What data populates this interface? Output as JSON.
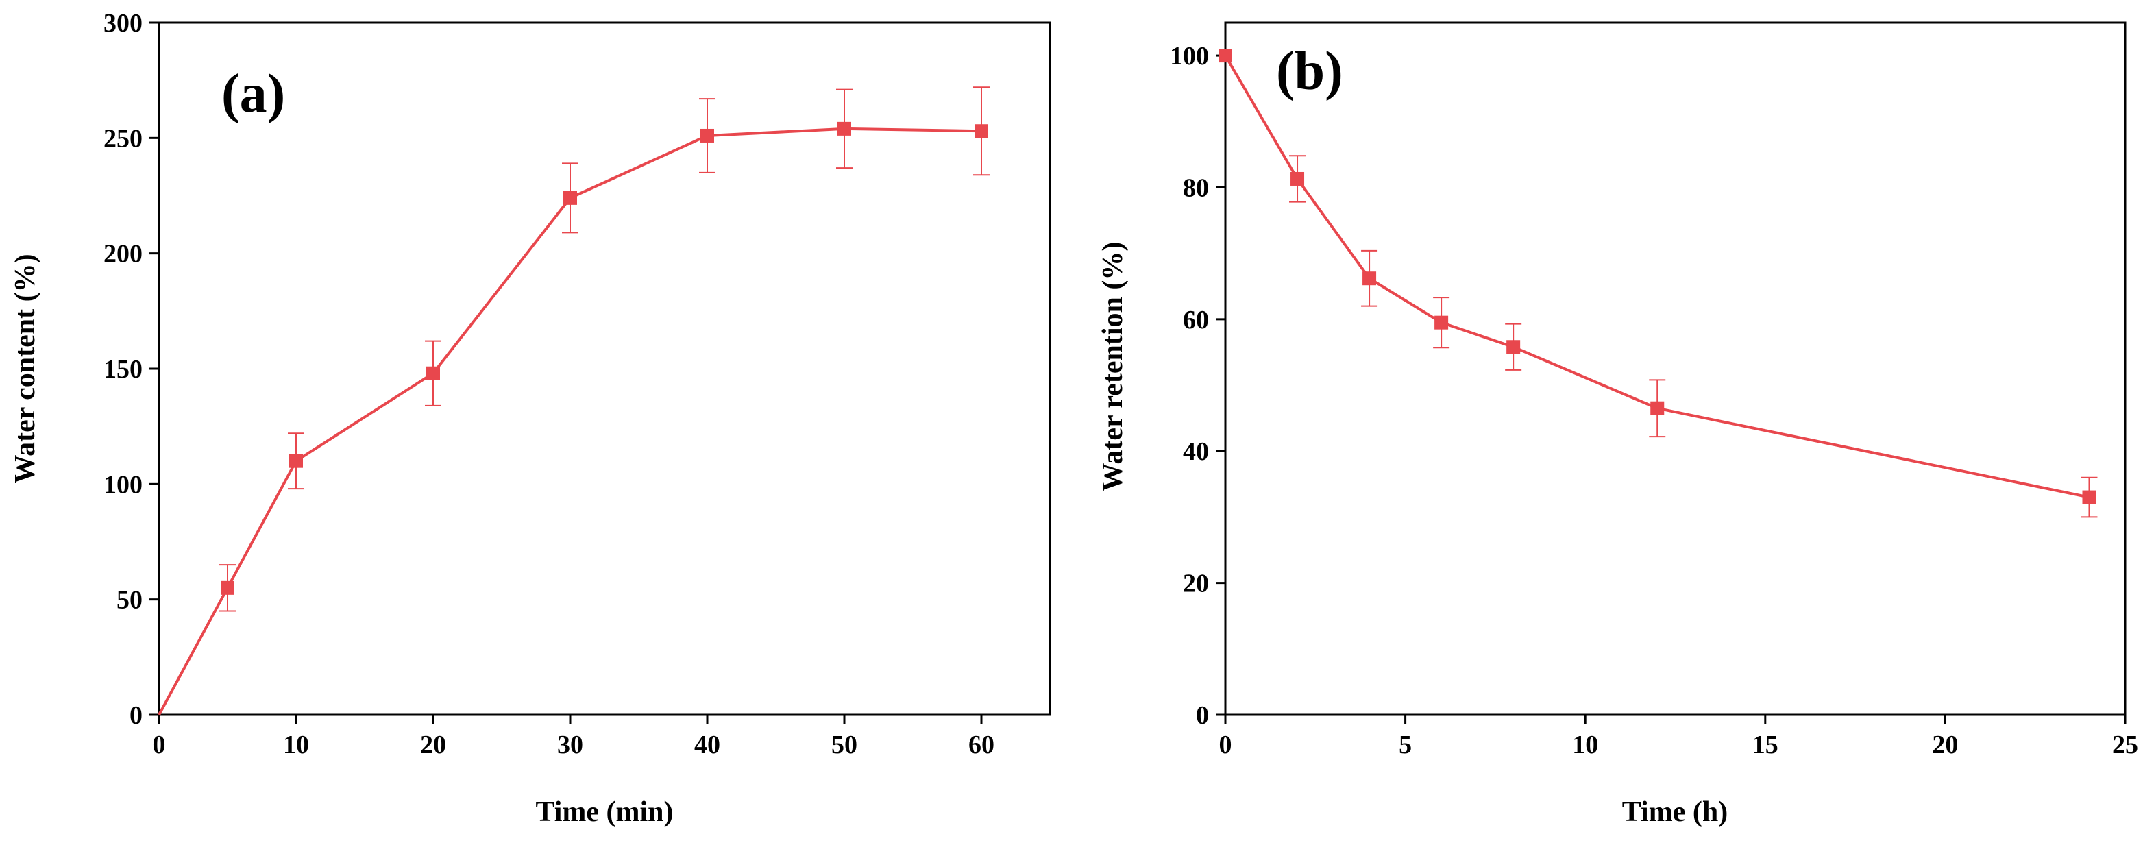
{
  "chart_data": [
    {
      "type": "line",
      "panel_label": "(a)",
      "xlabel": "Time (min)",
      "ylabel": "Water content (%)",
      "xlim": [
        0,
        65
      ],
      "ylim": [
        0,
        300
      ],
      "xticks": [
        0,
        10,
        20,
        30,
        40,
        50,
        60
      ],
      "yticks": [
        0,
        50,
        100,
        150,
        200,
        250,
        300
      ],
      "color": "#e8474d",
      "series": [
        {
          "name": "Water content",
          "x": [
            0,
            5,
            10,
            20,
            30,
            40,
            50,
            60
          ],
          "y": [
            0,
            55,
            110,
            148,
            224,
            251,
            254,
            253
          ],
          "err": [
            0,
            10,
            12,
            14,
            15,
            16,
            17,
            19
          ],
          "marker": [
            false,
            true,
            true,
            true,
            true,
            true,
            true,
            true
          ]
        }
      ]
    },
    {
      "type": "line",
      "panel_label": "(b)",
      "xlabel": "Time (h)",
      "ylabel": "Water retention (%)",
      "xlim": [
        0,
        25
      ],
      "ylim": [
        0,
        105
      ],
      "xticks": [
        0,
        5,
        10,
        15,
        20,
        25
      ],
      "yticks": [
        0,
        20,
        40,
        60,
        80,
        100
      ],
      "color": "#e8474d",
      "series": [
        {
          "name": "Water retention",
          "x": [
            0,
            2,
            4,
            6,
            8,
            12,
            24
          ],
          "y": [
            100,
            81.3,
            66.2,
            59.5,
            55.8,
            46.5,
            33
          ],
          "err": [
            0,
            3.5,
            4.2,
            3.8,
            3.5,
            4.3,
            3
          ],
          "marker": [
            true,
            true,
            true,
            true,
            true,
            true,
            true
          ]
        }
      ]
    }
  ]
}
